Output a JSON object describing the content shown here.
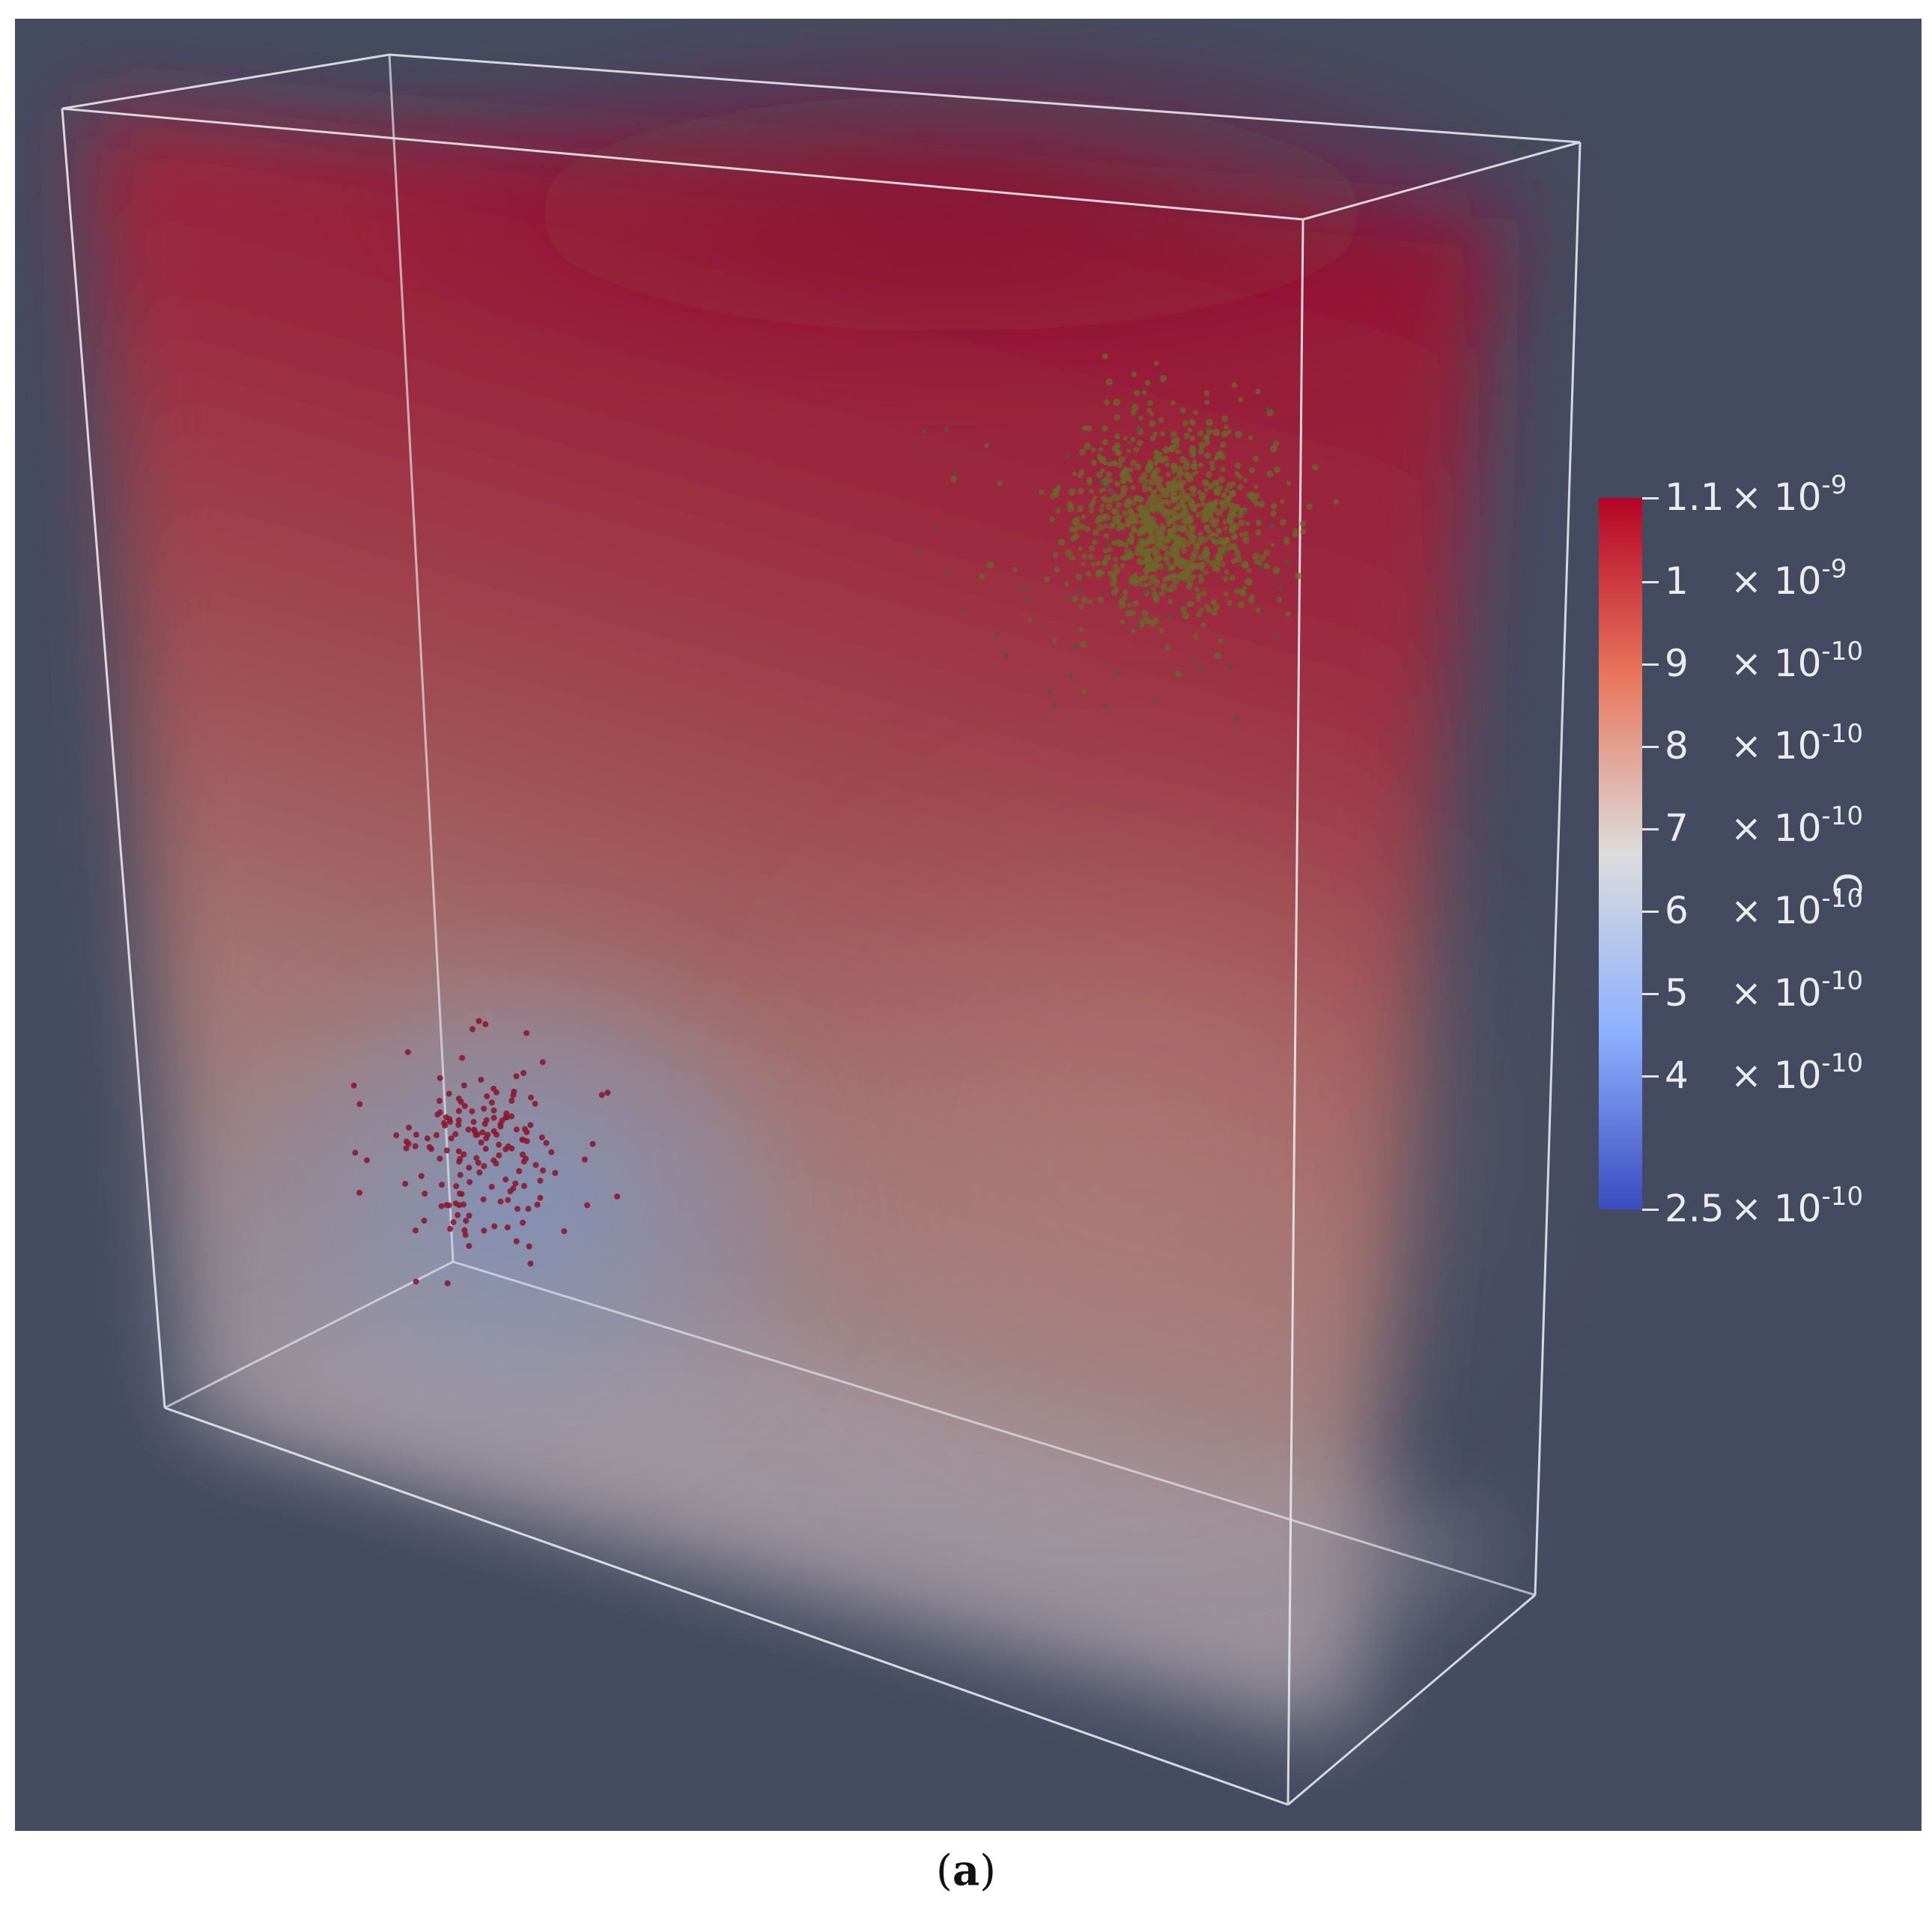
{
  "scene": {
    "background": "#444b61",
    "colormap": [
      "#3b4cc0",
      "#8db0fe",
      "#dddcdc",
      "#f4987a",
      "#b40426"
    ],
    "particle_cluster_colors": {
      "upper": "#6b6a2a",
      "lower": "#8a1a30"
    }
  },
  "colorbar": {
    "title": "C",
    "ticks": [
      {
        "mantissa": "1.1",
        "exponent": "-9",
        "value": 1.1e-09
      },
      {
        "mantissa": "1",
        "exponent": "-9",
        "value": 1e-09
      },
      {
        "mantissa": "9",
        "exponent": "-10",
        "value": 9e-10
      },
      {
        "mantissa": "8",
        "exponent": "-10",
        "value": 8e-10
      },
      {
        "mantissa": "7",
        "exponent": "-10",
        "value": 7e-10
      },
      {
        "mantissa": "6",
        "exponent": "-10",
        "value": 6e-10
      },
      {
        "mantissa": "5",
        "exponent": "-10",
        "value": 5e-10
      },
      {
        "mantissa": "4",
        "exponent": "-10",
        "value": 4e-10
      },
      {
        "mantissa": "2.5",
        "exponent": "-10",
        "value": 2.5e-10
      }
    ],
    "range": [
      2.5e-10,
      1.1e-09
    ]
  },
  "caption": {
    "open": "(",
    "letter": "a",
    "close": ")"
  }
}
